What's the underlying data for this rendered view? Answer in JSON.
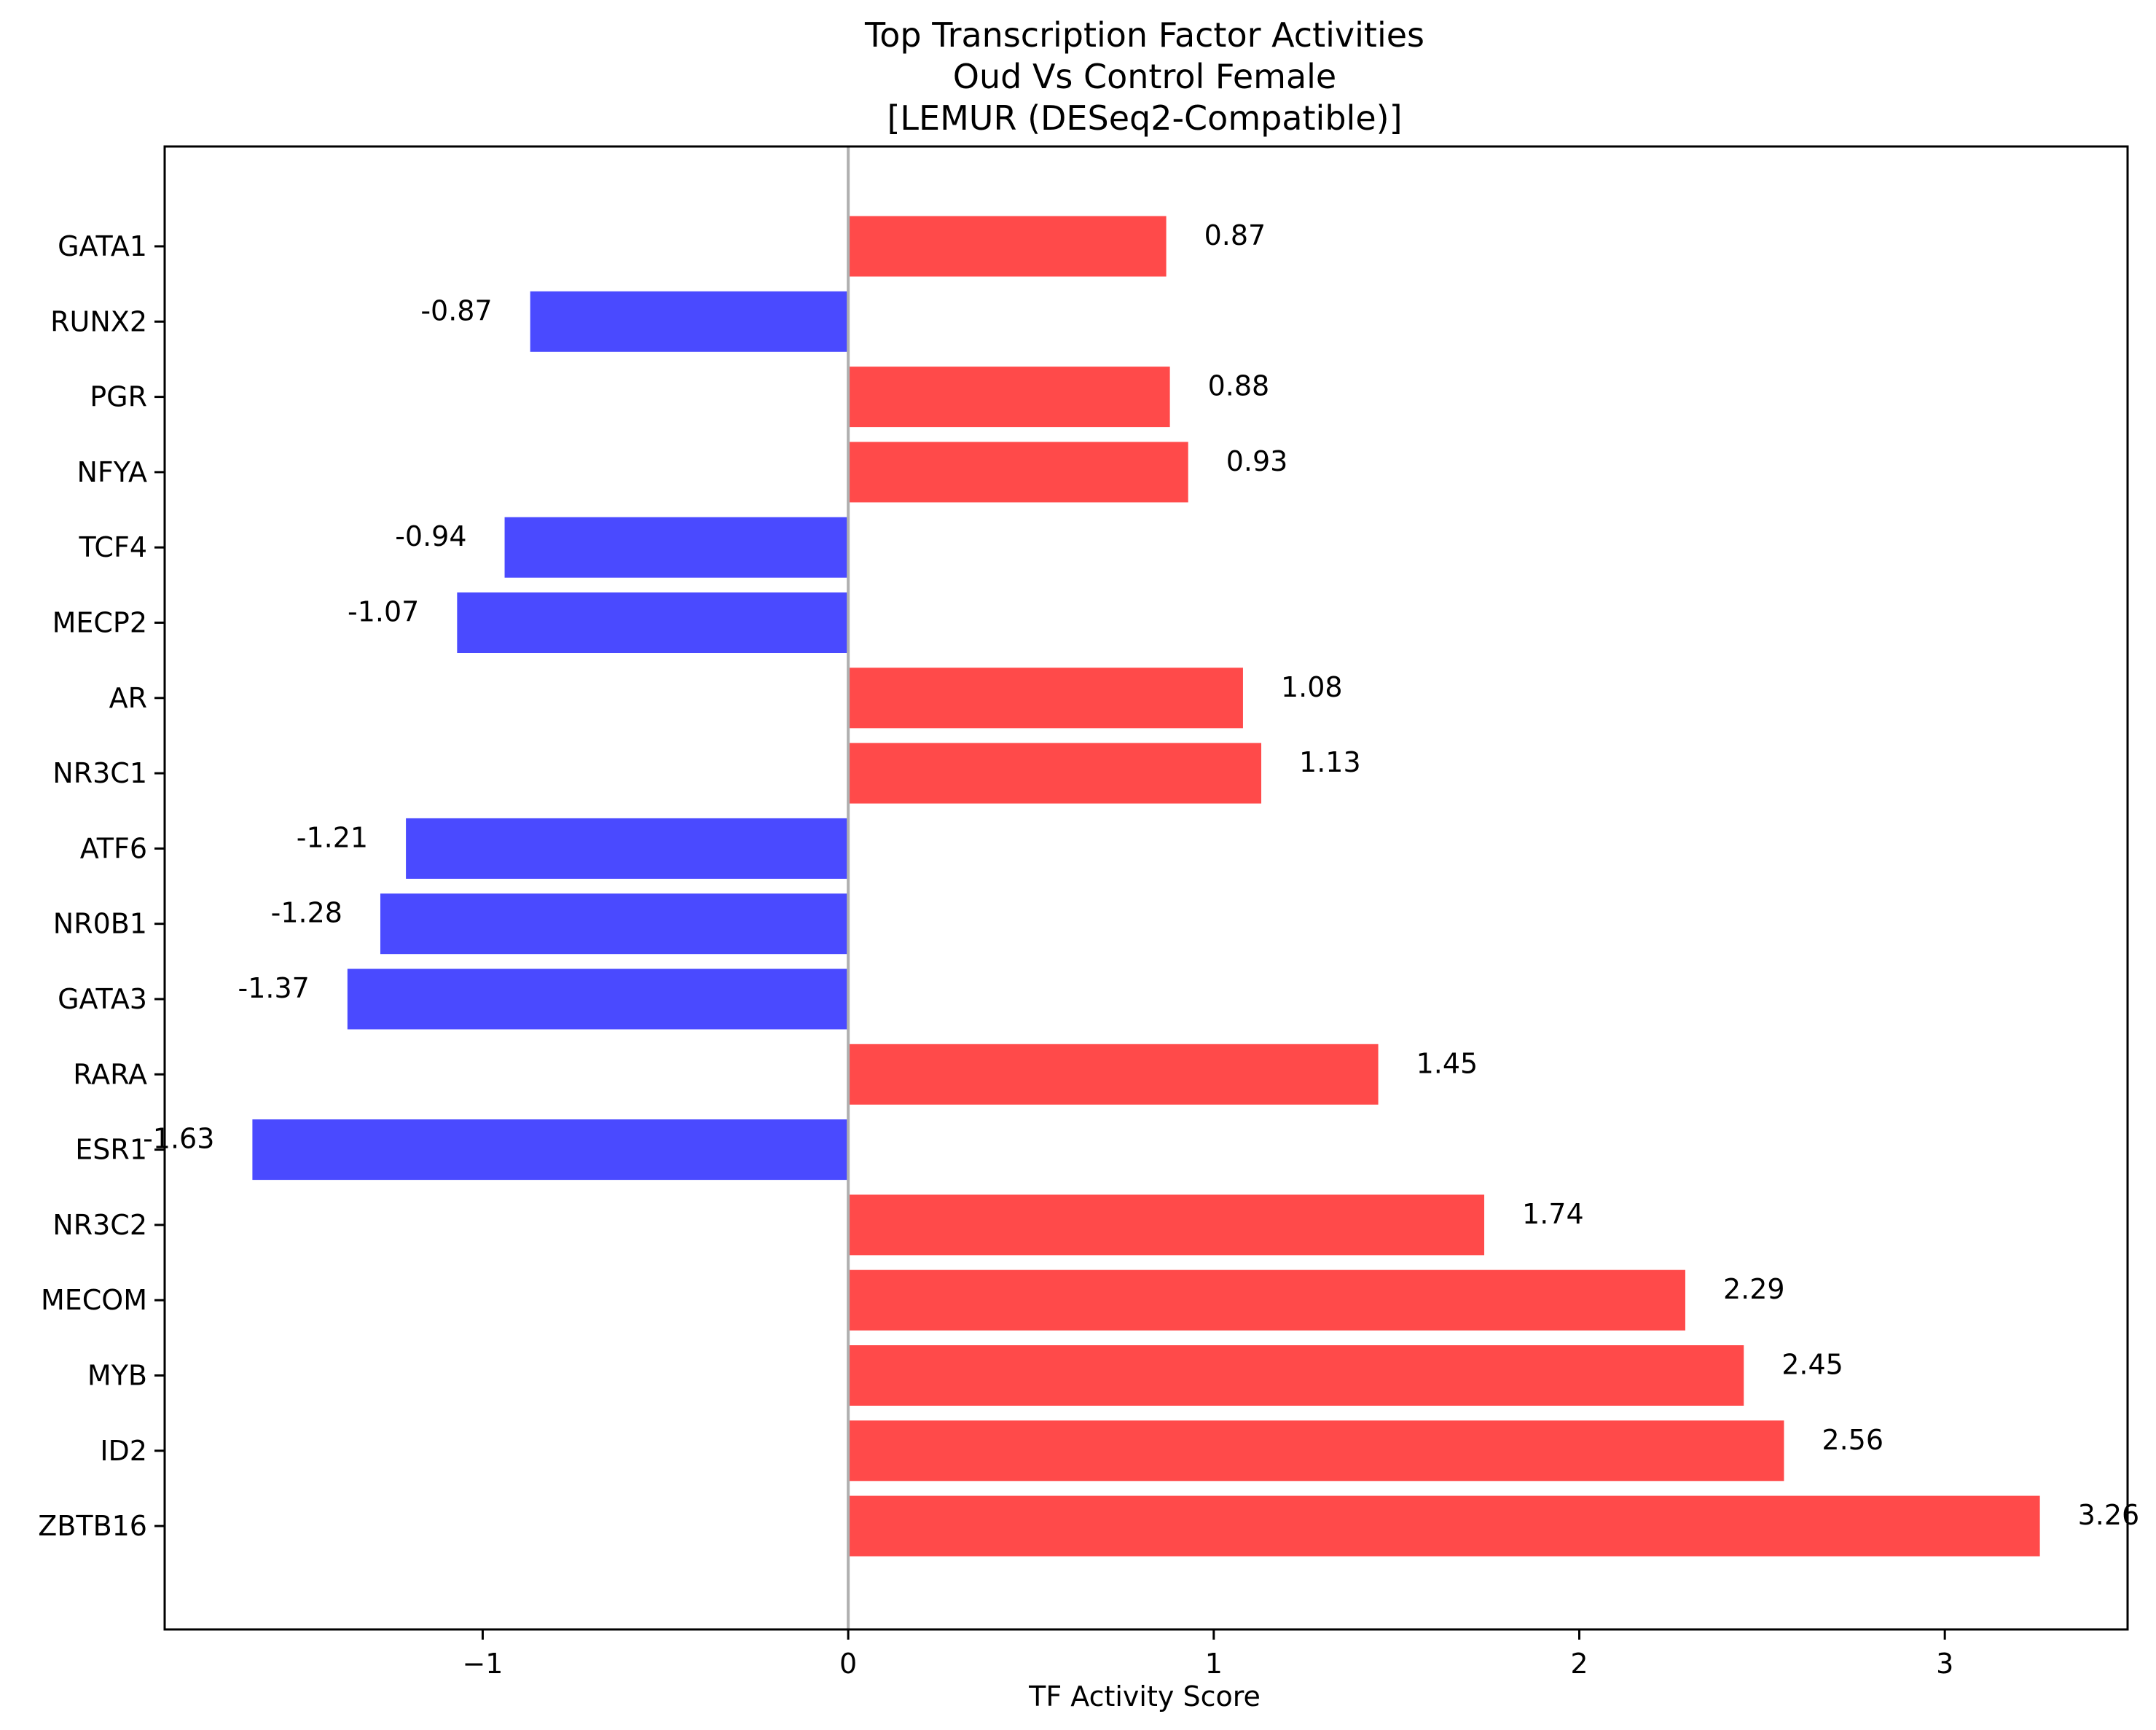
{
  "chart_data": {
    "type": "bar",
    "orientation": "horizontal",
    "title_lines": [
      "Top Transcription Factor Activities",
      "Oud Vs Control Female",
      "[LEMUR (DESeq2-Compatible)]"
    ],
    "xlabel": "TF Activity Score",
    "ylabel": "",
    "xlim": [
      -1.87,
      3.5
    ],
    "xticks": [
      -1,
      0,
      1,
      2,
      3
    ],
    "xtick_labels": [
      "−1",
      "0",
      "1",
      "2",
      "3"
    ],
    "categories": [
      "GATA1",
      "RUNX2",
      "PGR",
      "NFYA",
      "TCF4",
      "MECP2",
      "AR",
      "NR3C1",
      "ATF6",
      "NR0B1",
      "GATA3",
      "RARA",
      "ESR1",
      "NR3C2",
      "MECOM",
      "MYB",
      "ID2",
      "ZBTB16"
    ],
    "values": [
      0.87,
      -0.87,
      0.88,
      0.93,
      -0.94,
      -1.07,
      1.08,
      1.13,
      -1.21,
      -1.28,
      -1.37,
      1.45,
      -1.63,
      1.74,
      2.29,
      2.45,
      2.56,
      3.26
    ],
    "value_labels": [
      "0.87",
      "-0.87",
      "0.88",
      "0.93",
      "-0.94",
      "-1.07",
      "1.08",
      "1.13",
      "-1.21",
      "-1.28",
      "-1.37",
      "1.45",
      "-1.63",
      "1.74",
      "2.29",
      "2.45",
      "2.56",
      "3.26"
    ],
    "colors": {
      "positive": "#ff4a4a",
      "negative": "#4a4aff",
      "zero_line": "#b0b0b0",
      "axes": "#000000"
    },
    "zero_line": true,
    "grid": false,
    "legend": "none"
  }
}
